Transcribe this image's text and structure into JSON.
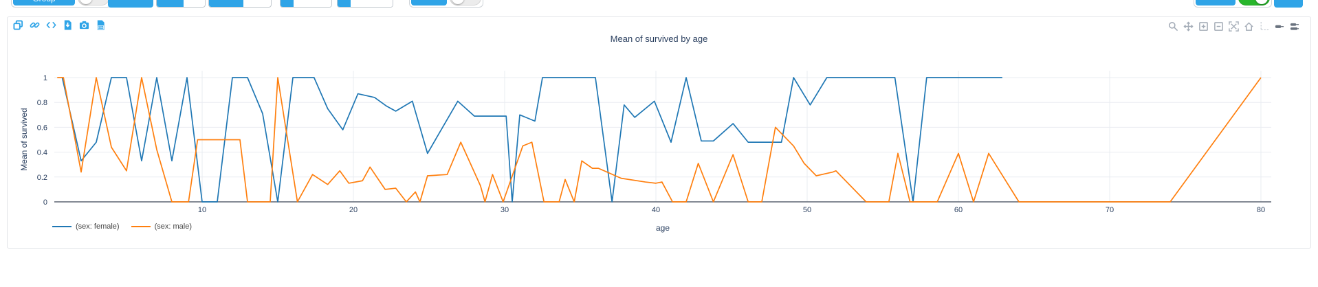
{
  "toolbar": {
    "group_label": "Group",
    "group_toggle_state": "off",
    "plots_label": "",
    "select1_value": "",
    "select2_value": "",
    "input1_value": "",
    "input2_value": "",
    "toggle2_label": "",
    "toggle2_state": "off",
    "auto_label": "",
    "auto_toggle_state": "on",
    "save_label": "",
    "accent_color": "#2fa4e7",
    "toggle_on_color": "#28b62c"
  },
  "chart_toolbar": {
    "icons": [
      "copy",
      "link",
      "embed-code",
      "download-script",
      "camera",
      "download-csv"
    ]
  },
  "modebar": {
    "icons": [
      "zoom",
      "pan",
      "zoom-in",
      "zoom-out",
      "autoscale",
      "reset-axes",
      "toggle-spikelines",
      "hover-closest",
      "hover-compare"
    ]
  },
  "chart_data": {
    "type": "line",
    "title": "Mean of survived by age",
    "xlabel": "age",
    "ylabel": "Mean of survived",
    "x_ticks": [
      10,
      20,
      30,
      40,
      50,
      60,
      70,
      80
    ],
    "y_ticks": [
      0,
      0.2,
      0.4,
      0.6,
      0.8,
      1
    ],
    "xlim": [
      0,
      82
    ],
    "ylim": [
      0,
      1.08
    ],
    "grid": true,
    "legend_position": "bottom-left",
    "series": [
      {
        "name": "(sex: female)",
        "color": "#1f77b4",
        "points": [
          [
            0.75,
            1
          ],
          [
            2,
            0.33
          ],
          [
            3,
            0.48
          ],
          [
            4,
            1
          ],
          [
            5,
            1
          ],
          [
            6,
            0.33
          ],
          [
            7,
            1
          ],
          [
            8,
            0.33
          ],
          [
            9,
            1
          ],
          [
            10,
            0
          ],
          [
            11,
            0
          ],
          [
            12,
            1
          ],
          [
            13,
            1
          ],
          [
            14,
            0.71
          ],
          [
            15,
            0
          ],
          [
            16,
            1
          ],
          [
            17.4,
            1
          ],
          [
            18.3,
            0.75
          ],
          [
            19.3,
            0.58
          ],
          [
            20.3,
            0.87
          ],
          [
            21.4,
            0.84
          ],
          [
            22.2,
            0.77
          ],
          [
            22.8,
            0.73
          ],
          [
            23.9,
            0.81
          ],
          [
            24.9,
            0.39
          ],
          [
            26.9,
            0.81
          ],
          [
            28,
            0.69
          ],
          [
            30.1,
            0.69
          ],
          [
            30.5,
            0
          ],
          [
            31,
            0.7
          ],
          [
            32,
            0.65
          ],
          [
            32.5,
            1
          ],
          [
            36,
            1
          ],
          [
            37.1,
            0
          ],
          [
            37.9,
            0.78
          ],
          [
            38.6,
            0.68
          ],
          [
            39.9,
            0.81
          ],
          [
            41,
            0.48
          ],
          [
            42,
            1
          ],
          [
            43,
            0.49
          ],
          [
            43.8,
            0.49
          ],
          [
            45.1,
            0.63
          ],
          [
            46.1,
            0.48
          ],
          [
            48.3,
            0.48
          ],
          [
            49.1,
            1
          ],
          [
            50.2,
            0.78
          ],
          [
            51.3,
            1
          ],
          [
            55.8,
            1
          ],
          [
            57,
            0
          ],
          [
            57.9,
            1
          ],
          [
            62.9,
            1
          ]
        ]
      },
      {
        "name": "(sex: male)",
        "color": "#ff7f0e",
        "points": [
          [
            0.42,
            1
          ],
          [
            0.83,
            1
          ],
          [
            2,
            0.24
          ],
          [
            3,
            1
          ],
          [
            4,
            0.44
          ],
          [
            5,
            0.25
          ],
          [
            6,
            1
          ],
          [
            7,
            0.42
          ],
          [
            8,
            0
          ],
          [
            9.1,
            0
          ],
          [
            9.7,
            0.5
          ],
          [
            12.5,
            0.5
          ],
          [
            13,
            0
          ],
          [
            14.5,
            0
          ],
          [
            15,
            1
          ],
          [
            16.3,
            0
          ],
          [
            17.3,
            0.22
          ],
          [
            18.3,
            0.14
          ],
          [
            19.1,
            0.25
          ],
          [
            19.7,
            0.15
          ],
          [
            20.6,
            0.17
          ],
          [
            21.1,
            0.28
          ],
          [
            22.1,
            0.1
          ],
          [
            22.8,
            0.11
          ],
          [
            23.5,
            0
          ],
          [
            24.1,
            0.08
          ],
          [
            24.4,
            0
          ],
          [
            24.9,
            0.21
          ],
          [
            26.2,
            0.22
          ],
          [
            27.1,
            0.48
          ],
          [
            28.4,
            0.13
          ],
          [
            28.7,
            0
          ],
          [
            29.2,
            0.22
          ],
          [
            29.9,
            0
          ],
          [
            31.2,
            0.45
          ],
          [
            31.8,
            0.48
          ],
          [
            32.6,
            0
          ],
          [
            33.6,
            0
          ],
          [
            34,
            0.18
          ],
          [
            34.6,
            0
          ],
          [
            35.1,
            0.33
          ],
          [
            35.8,
            0.27
          ],
          [
            36.2,
            0.27
          ],
          [
            37.7,
            0.19
          ],
          [
            39.3,
            0.16
          ],
          [
            40,
            0.15
          ],
          [
            40.4,
            0.16
          ],
          [
            41.1,
            0
          ],
          [
            42,
            0
          ],
          [
            42.8,
            0.31
          ],
          [
            43.8,
            0
          ],
          [
            45.1,
            0.38
          ],
          [
            46.1,
            0
          ],
          [
            47,
            0
          ],
          [
            47.9,
            0.6
          ],
          [
            49.1,
            0.45
          ],
          [
            49.8,
            0.31
          ],
          [
            50.6,
            0.21
          ],
          [
            51.7,
            0.24
          ],
          [
            51.9,
            0.25
          ],
          [
            53.9,
            0
          ],
          [
            55.4,
            0
          ],
          [
            56,
            0.39
          ],
          [
            56.8,
            0
          ],
          [
            58.6,
            0
          ],
          [
            60,
            0.39
          ],
          [
            61,
            0
          ],
          [
            62,
            0.39
          ],
          [
            64,
            0
          ],
          [
            74,
            0
          ],
          [
            80,
            1
          ]
        ]
      }
    ]
  }
}
